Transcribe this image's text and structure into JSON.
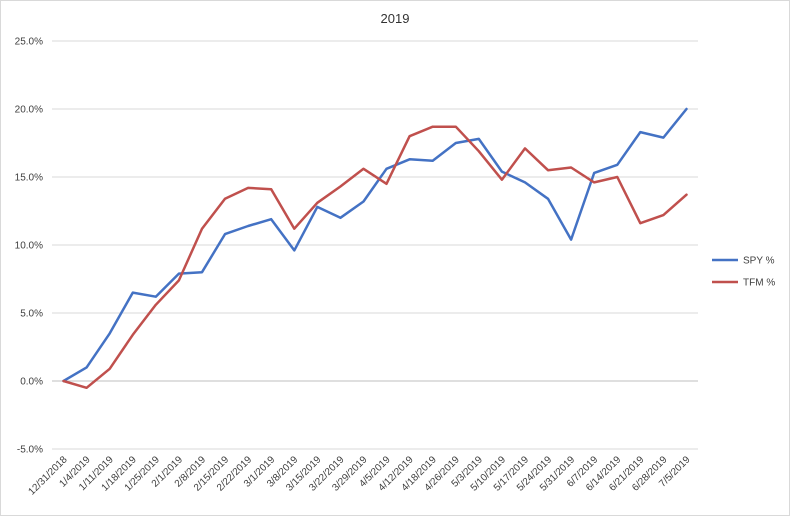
{
  "chart_data": {
    "type": "line",
    "title": "2019",
    "xlabel": "",
    "ylabel": "",
    "ylim": [
      -5.0,
      25.0
    ],
    "y_ticks": [
      "-5.0%",
      "0.0%",
      "5.0%",
      "10.0%",
      "15.0%",
      "20.0%",
      "25.0%"
    ],
    "y_tick_values": [
      -5,
      0,
      5,
      10,
      15,
      20,
      25
    ],
    "grid": "horizontal",
    "legend_position": "right",
    "categories": [
      "12/31/2018",
      "1/4/2019",
      "1/11/2019",
      "1/18/2019",
      "1/25/2019",
      "2/1/2019",
      "2/8/2019",
      "2/15/2019",
      "2/22/2019",
      "3/1/2019",
      "3/8/2019",
      "3/15/2019",
      "3/22/2019",
      "3/29/2019",
      "4/5/2019",
      "4/12/2019",
      "4/18/2019",
      "4/26/2019",
      "5/3/2019",
      "5/10/2019",
      "5/17/2019",
      "5/24/2019",
      "5/31/2019",
      "6/7/2019",
      "6/14/2019",
      "6/21/2019",
      "6/28/2019",
      "7/5/2019"
    ],
    "series": [
      {
        "name": "SPY %",
        "color": "#4472c4",
        "values": [
          0.0,
          1.0,
          3.5,
          6.5,
          6.2,
          7.9,
          8.0,
          10.8,
          11.4,
          11.9,
          9.6,
          12.8,
          12.0,
          13.2,
          15.6,
          16.3,
          16.2,
          17.5,
          17.8,
          15.4,
          14.6,
          13.4,
          10.4,
          15.3,
          15.9,
          18.3,
          17.9,
          20.0
        ]
      },
      {
        "name": "TFM %",
        "color": "#c0504d",
        "values": [
          0.0,
          -0.5,
          0.9,
          3.4,
          5.6,
          7.4,
          11.2,
          13.4,
          14.2,
          14.1,
          11.2,
          13.1,
          14.3,
          15.6,
          14.5,
          18.0,
          18.7,
          18.7,
          16.9,
          14.8,
          17.1,
          15.5,
          15.7,
          14.6,
          15.0,
          11.6,
          12.2,
          13.7
        ]
      }
    ]
  }
}
